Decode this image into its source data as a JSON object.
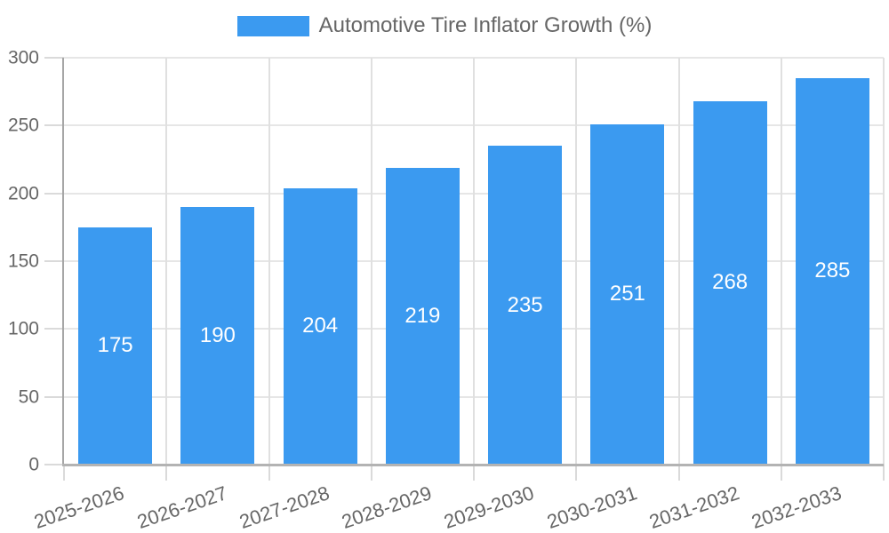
{
  "legend": {
    "label": "Automotive Tire Inflator Growth (%)"
  },
  "colors": {
    "bar": "#3b9af0",
    "grid_horizontal": "#e6e6e6",
    "grid_vertical": "#e0e0e0",
    "tick_mark": "#dadada",
    "axis_y": "#a6a6a6",
    "axis_x": "#b3b3b3",
    "tick_text": "#666666",
    "value_label": "#ffffff",
    "background": "#ffffff"
  },
  "chart_data": {
    "type": "bar",
    "title": "Automotive Tire Inflator Growth (%)",
    "legend_entries": [
      "Automotive Tire Inflator Growth (%)"
    ],
    "legend_position": "top",
    "categories": [
      "2025-2026",
      "2026-2027",
      "2027-2028",
      "2028-2029",
      "2029-2030",
      "2030-2031",
      "2031-2032",
      "2032-2033"
    ],
    "values": [
      175,
      190,
      204,
      219,
      235,
      251,
      268,
      285
    ],
    "xlabel": "",
    "ylabel": "",
    "ylim": [
      0,
      300
    ],
    "yticks": [
      0,
      50,
      100,
      150,
      200,
      250,
      300
    ],
    "grid": true,
    "bar_value_labels": true,
    "x_label_rotation_deg": -19
  }
}
